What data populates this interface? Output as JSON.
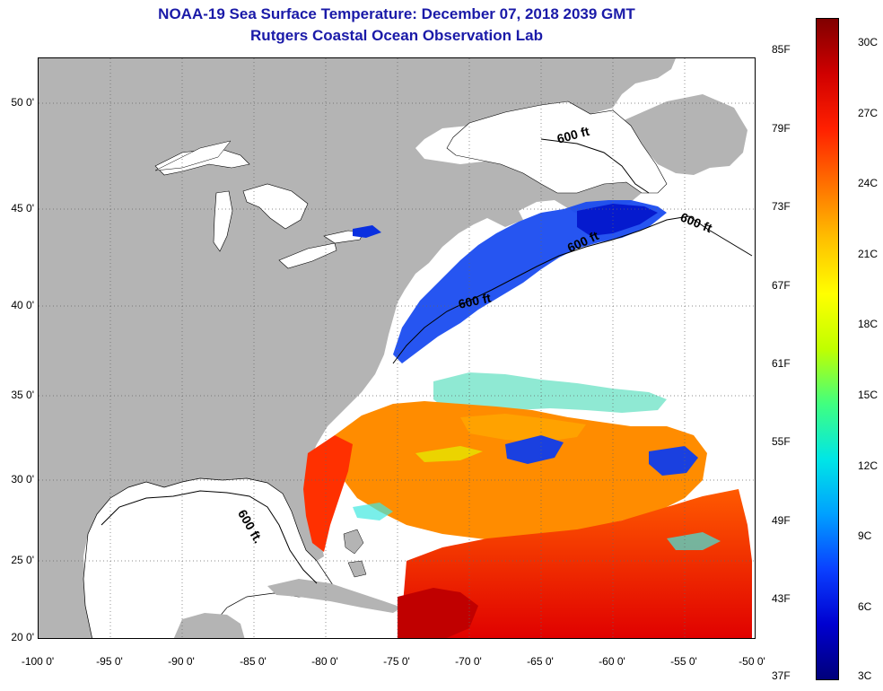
{
  "header": {
    "title": "NOAA-19 Sea Surface Temperature:  December 07, 2018 2039 GMT",
    "subtitle": "Rutgers Coastal Ocean Observation Lab"
  },
  "map": {
    "lat_labels": [
      "50 0'",
      "45 0'",
      "40 0'",
      "35 0'",
      "30 0'",
      "25 0'",
      "20 0'"
    ],
    "lon_labels": [
      "-100 0'",
      "-95 0'",
      "-90 0'",
      "-85 0'",
      "-80 0'",
      "-75 0'",
      "-70 0'",
      "-65 0'",
      "-60 0'",
      "-55 0'",
      "-50 0'"
    ],
    "contour_label": "600 ft",
    "contour_label_gulf": "600 ft."
  },
  "colorbar": {
    "f_labels": [
      "85F",
      "79F",
      "73F",
      "67F",
      "61F",
      "55F",
      "49F",
      "43F",
      "37F"
    ],
    "c_labels": [
      "30C",
      "27C",
      "24C",
      "21C",
      "18C",
      "15C",
      "12C",
      "9C",
      "6C",
      "3C"
    ],
    "colors": [
      "#00007a",
      "#0000d0",
      "#0a40ff",
      "#00a0ff",
      "#00e6e6",
      "#40ff80",
      "#c0ff00",
      "#ffff00",
      "#ffc000",
      "#ff7000",
      "#ff2000",
      "#d00000",
      "#800000"
    ]
  },
  "land_color": "#b4b4b4",
  "ocean_nodata_color": "#ffffff"
}
